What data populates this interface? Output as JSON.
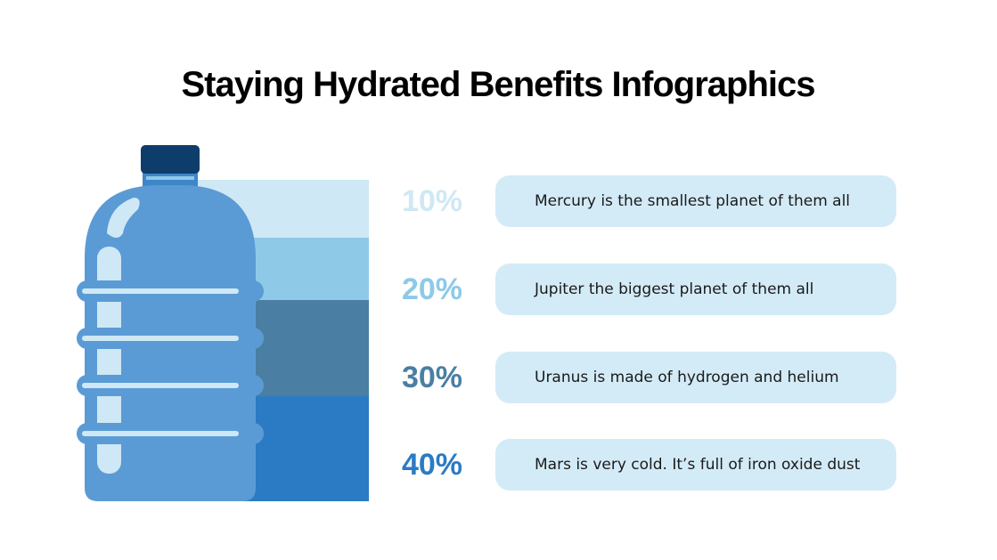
{
  "header": {
    "title": "Staying Hydrated Benefits Infographics"
  },
  "items": [
    {
      "percent": "10%",
      "text": "Mercury is the smallest planet of them all",
      "color": "#cfe8f5"
    },
    {
      "percent": "20%",
      "text": "Jupiter the biggest planet of them all",
      "color": "#8ec9e8"
    },
    {
      "percent": "30%",
      "text": "Uranus is made of hydrogen and helium",
      "color": "#4a7fa3"
    },
    {
      "percent": "40%",
      "text": "Mars is very cold. It’s full of iron oxide dust",
      "color": "#2b7bc4"
    }
  ]
}
